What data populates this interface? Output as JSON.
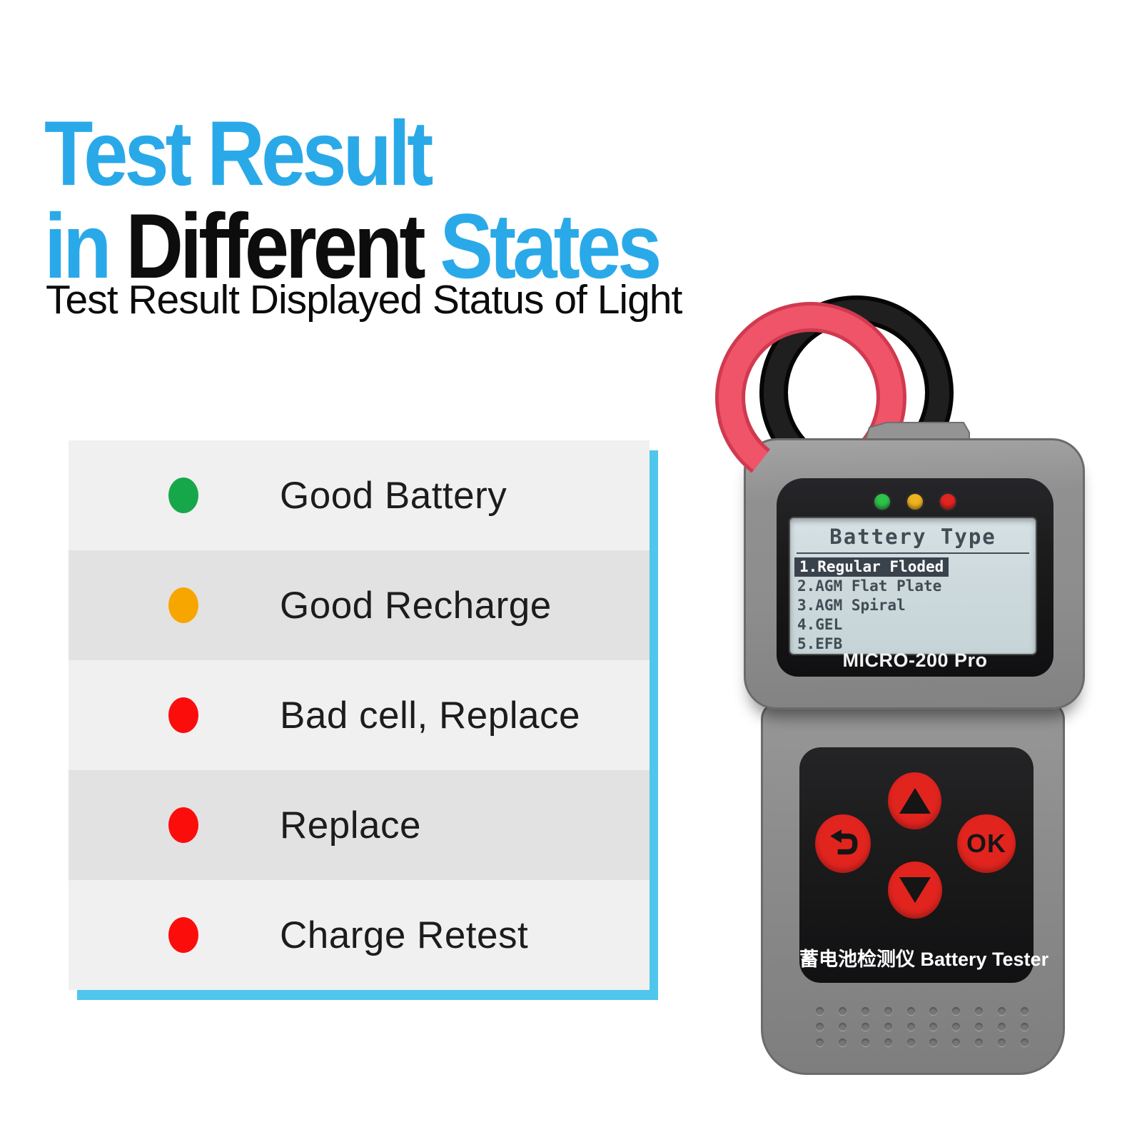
{
  "header": {
    "title_line1": "Test Result",
    "title_line2": [
      {
        "text": "in",
        "color": "accent"
      },
      {
        "text": "Different",
        "color": "black"
      },
      {
        "text": "States",
        "color": "accent"
      }
    ],
    "subtitle": "Test Result Displayed Status of Light"
  },
  "status_list": {
    "items": [
      {
        "label": "Good Battery",
        "dot_color": "#17a74b"
      },
      {
        "label": "Good Recharge",
        "dot_color": "#f7a600"
      },
      {
        "label": "Bad cell, Replace",
        "dot_color": "#fb0d0c"
      },
      {
        "label": "Replace",
        "dot_color": "#fb0d0c"
      },
      {
        "label": "Charge Retest",
        "dot_color": "#fb0d0c"
      }
    ]
  },
  "device": {
    "model": "MICRO-200 Pro",
    "label": "蓄电池检测仪 Battery Tester",
    "ok_label": "OK",
    "leds": [
      {
        "name": "green-led",
        "color": "#2ec14b"
      },
      {
        "name": "yellow-led",
        "color": "#eeb41e"
      },
      {
        "name": "red-led",
        "color": "#e2251f"
      }
    ],
    "screen": {
      "title": "Battery Type",
      "items": [
        "1.Regular Floded",
        "2.AGM Flat Plate",
        "3.AGM Spiral",
        "4.GEL",
        "5.EFB"
      ],
      "selected_index": 0
    },
    "speaker_grid": {
      "cols": 10,
      "rows": 3
    }
  },
  "theme": {
    "accent": "#2aa9e9",
    "heading_dark": "#0d0d0d",
    "shadow_blue": "#4fc6ec",
    "row_light": "#f1f0f0",
    "row_dark": "#e3e2e2",
    "list_text": "#1c1c1c",
    "body_gray": "#8d8d8d",
    "body_gray_dark": "#7e7e7e",
    "edge_gray": "#6b6b6b",
    "bezel_black": "#1b1b1b",
    "screen_bg": "#cdd9dd",
    "screen_text": "#414c55",
    "highlight_bg": "#3a434c",
    "highlight_text": "#ffffff",
    "button_red": "#e2241f",
    "button_glyph": "#151515",
    "cable_red": "#f05468",
    "cable_red_dark": "#cf3a50",
    "cable_black": "#121212",
    "device_label": "#ffffff"
  }
}
